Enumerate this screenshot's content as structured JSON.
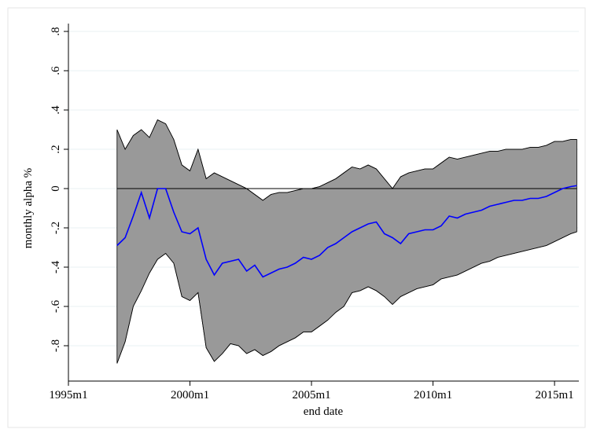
{
  "chart_data": {
    "type": "line",
    "x_label": "end date",
    "y_label": "monthly alpha %",
    "xlim": [
      "1995m1",
      "2016m1"
    ],
    "xticks": [
      "1995m1",
      "2000m1",
      "2005m1",
      "2010m1",
      "2015m1"
    ],
    "ylim": [
      -0.98,
      0.84
    ],
    "yticks": [
      {
        "value": -0.8,
        "label": "-.8"
      },
      {
        "value": -0.6,
        "label": "-.6"
      },
      {
        "value": -0.4,
        "label": "-.4"
      },
      {
        "value": -0.2,
        "label": "-.2"
      },
      0,
      {
        "value": 0.2,
        "label": ".2"
      },
      {
        "value": 0.4,
        "label": ".4"
      },
      {
        "value": 0.6,
        "label": ".6"
      },
      {
        "value": 0.8,
        "label": ".8"
      }
    ],
    "grid": true,
    "reference_line": 0,
    "x": [
      "1997m1",
      "1997m5",
      "1997m9",
      "1998m1",
      "1998m5",
      "1998m9",
      "1999m1",
      "1999m5",
      "1999m9",
      "2000m1",
      "2000m5",
      "2000m9",
      "2001m1",
      "2001m5",
      "2001m9",
      "2002m1",
      "2002m5",
      "2002m9",
      "2003m1",
      "2003m5",
      "2003m9",
      "2004m1",
      "2004m5",
      "2004m9",
      "2005m1",
      "2005m5",
      "2005m9",
      "2006m1",
      "2006m5",
      "2006m9",
      "2007m1",
      "2007m5",
      "2007m9",
      "2008m1",
      "2008m5",
      "2008m9",
      "2009m1",
      "2009m5",
      "2009m9",
      "2010m1",
      "2010m5",
      "2010m9",
      "2011m1",
      "2011m5",
      "2011m9",
      "2012m1",
      "2012m5",
      "2012m9",
      "2013m1",
      "2013m5",
      "2013m9",
      "2014m1",
      "2014m5",
      "2014m9",
      "2015m1",
      "2015m5",
      "2015m9",
      "2015m12"
    ],
    "band": {
      "color": "#999999",
      "upper": [
        0.3,
        0.2,
        0.27,
        0.3,
        0.26,
        0.35,
        0.33,
        0.25,
        0.12,
        0.09,
        0.2,
        0.05,
        0.08,
        0.06,
        0.04,
        0.02,
        0.0,
        -0.03,
        -0.06,
        -0.03,
        -0.02,
        -0.02,
        -0.01,
        0.0,
        0.0,
        0.01,
        0.03,
        0.05,
        0.08,
        0.11,
        0.1,
        0.12,
        0.1,
        0.05,
        0.0,
        0.06,
        0.08,
        0.09,
        0.1,
        0.1,
        0.13,
        0.16,
        0.15,
        0.16,
        0.17,
        0.18,
        0.19,
        0.19,
        0.2,
        0.2,
        0.2,
        0.21,
        0.21,
        0.22,
        0.24,
        0.24,
        0.25,
        0.25
      ],
      "lower": [
        -0.89,
        -0.78,
        -0.6,
        -0.52,
        -0.43,
        -0.36,
        -0.33,
        -0.38,
        -0.55,
        -0.57,
        -0.53,
        -0.81,
        -0.88,
        -0.84,
        -0.79,
        -0.8,
        -0.84,
        -0.82,
        -0.85,
        -0.83,
        -0.8,
        -0.78,
        -0.76,
        -0.73,
        -0.73,
        -0.7,
        -0.67,
        -0.63,
        -0.6,
        -0.53,
        -0.52,
        -0.5,
        -0.52,
        -0.55,
        -0.59,
        -0.55,
        -0.53,
        -0.51,
        -0.5,
        -0.49,
        -0.46,
        -0.45,
        -0.44,
        -0.42,
        -0.4,
        -0.38,
        -0.37,
        -0.35,
        -0.34,
        -0.33,
        -0.32,
        -0.31,
        -0.3,
        -0.29,
        -0.27,
        -0.25,
        -0.23,
        -0.22
      ]
    },
    "series": [
      {
        "color": "#0000ff",
        "values": [
          -0.29,
          -0.25,
          -0.14,
          -0.02,
          -0.15,
          0.0,
          0.0,
          -0.12,
          -0.22,
          -0.23,
          -0.2,
          -0.36,
          -0.44,
          -0.38,
          -0.37,
          -0.36,
          -0.42,
          -0.39,
          -0.45,
          -0.43,
          -0.41,
          -0.4,
          -0.38,
          -0.35,
          -0.36,
          -0.34,
          -0.3,
          -0.28,
          -0.25,
          -0.22,
          -0.2,
          -0.18,
          -0.17,
          -0.23,
          -0.25,
          -0.28,
          -0.23,
          -0.22,
          -0.21,
          -0.21,
          -0.19,
          -0.14,
          -0.15,
          -0.13,
          -0.12,
          -0.11,
          -0.09,
          -0.08,
          -0.07,
          -0.06,
          -0.06,
          -0.05,
          -0.05,
          -0.04,
          -0.02,
          0.0,
          0.01,
          0.015
        ]
      }
    ]
  }
}
